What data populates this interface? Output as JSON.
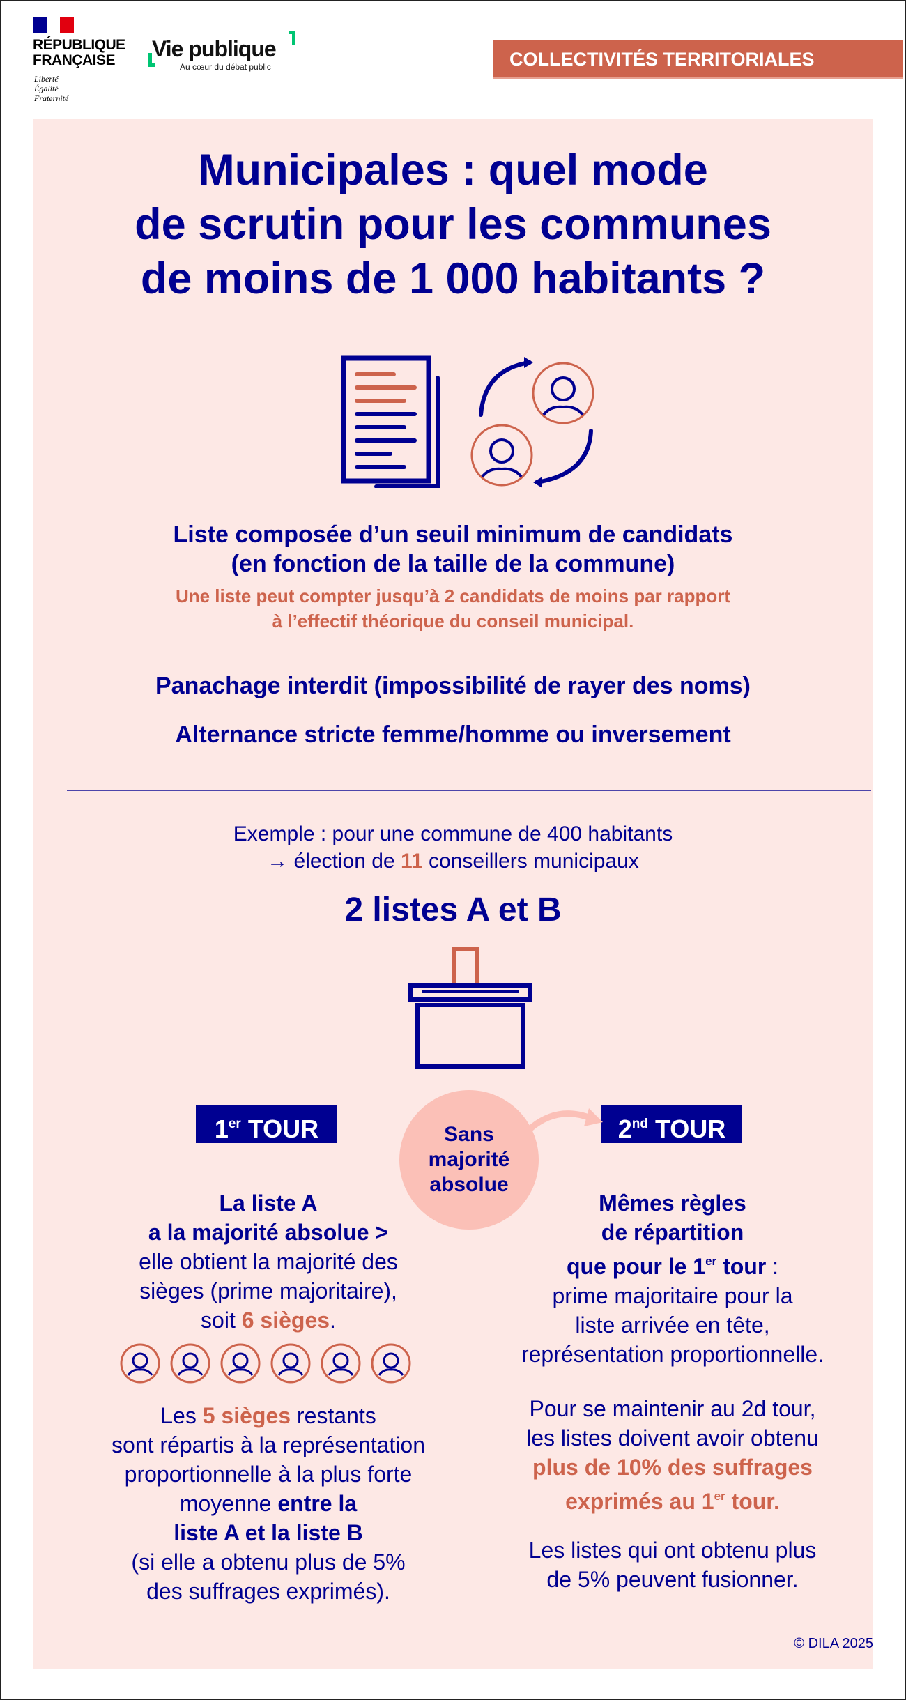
{
  "header": {
    "rf_line1": "RÉPUBLIQUE",
    "rf_line2": "FRANÇAISE",
    "devise": [
      "Liberté",
      "Égalité",
      "Fraternité"
    ],
    "brand": "Vie publique",
    "brand_tagline": "Au cœur du débat public",
    "category": "COLLECTIVITÉS TERRITORIALES"
  },
  "title": [
    "Municipales : quel mode",
    "de scrutin pour les communes",
    "de moins de 1 000 habitants ?"
  ],
  "rules": {
    "list_line1": "Liste composée d’un seuil minimum de candidats",
    "list_line2": "(en fonction de la taille de la commune)",
    "note_line1": "Une liste peut compter jusqu’à 2 candidats de moins par rapport",
    "note_line2": "à l’effectif théorique du conseil municipal.",
    "panachage": "Panachage interdit (impossibilité de rayer des noms)",
    "alternance": "Alternance stricte femme/homme ou inversement"
  },
  "example": {
    "line1": "Exemple : pour une commune de 400 habitants",
    "line2_pre": "→ élection de ",
    "line2_num": "11",
    "line2_post": " conseillers municipaux",
    "lists": "2 listes A et B"
  },
  "round1": {
    "num": "1",
    "sup": "er",
    "label": " TOUR"
  },
  "round2": {
    "num": "2",
    "sup": "nd",
    "label": " TOUR"
  },
  "no_majority": [
    "Sans",
    "majorité",
    "absolue"
  ],
  "left": {
    "l1": "La liste A",
    "l2": "a la majorité absolue >",
    "l3": "elle obtient la majorité des",
    "l4": "sièges (prime majoritaire),",
    "l5_pre": "soit ",
    "l5_hl": "6 sièges",
    "l5_post": ".",
    "seat_count": 6,
    "p2_pre": "Les ",
    "p2_hl": "5 sièges",
    "p2_post": " restants",
    "p2_l2": "sont répartis à la représentation",
    "p2_l3": "proportionnelle à la plus forte",
    "p2_l4_pre": "moyenne ",
    "p2_l4_b": "entre la",
    "p2_l5": "liste A et la liste B",
    "p2_l6": "(si elle a obtenu plus de 5%",
    "p2_l7": "des suffrages exprimés)."
  },
  "right": {
    "l1": "Mêmes règles",
    "l2": "de répartition",
    "l3_pre": "que pour le 1",
    "l3_sup": "er",
    "l3_post": " tour",
    "l3_colon": " :",
    "l4": "prime majoritaire pour la",
    "l5": "liste arrivée en tête,",
    "l6": "représentation proportionnelle.",
    "p2_l1": "Pour se maintenir au 2d tour,",
    "p2_l2": "les listes doivent avoir obtenu",
    "p2_l3": "plus de 10% des suffrages",
    "p2_l4_pre": "exprimés au 1",
    "p2_l4_sup": "er",
    "p2_l4_post": " tour.",
    "p3_l1": "Les listes qui ont obtenu plus",
    "p3_l2": "de 5% peuvent fusionner."
  },
  "copyright": "© DILA 2025",
  "colors": {
    "navy": "#000091",
    "coral": "#cd634c",
    "panel": "#fde8e5",
    "circle": "#fbc0b7",
    "green": "#00c573"
  }
}
